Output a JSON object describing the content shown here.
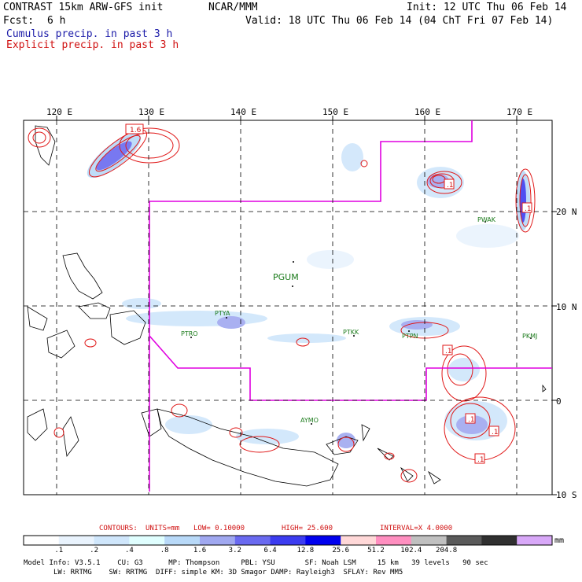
{
  "header": {
    "model": "CONTRAST 15km ARW-GFS init",
    "org": "NCAR/MMM",
    "init": "Init: 12 UTC Thu 06 Feb 14",
    "fcst_label": "Fcst:",
    "fcst_value": "6 h",
    "valid": "Valid: 18 UTC Thu 06 Feb 14 (04 ChT Fri 07 Feb 14)",
    "legend_cumulus": "Cumulus precip. in past 3 h",
    "legend_explicit": "Explicit precip. in past 3 h"
  },
  "colors": {
    "cumulus_text": "#1a1aa8",
    "explicit_text": "#d01010",
    "contour": "#e01818",
    "boundary": "#e000e0",
    "station": "#1a7a1a",
    "coast": "#000000"
  },
  "lon_labels": [
    "120 E",
    "130 E",
    "140 E",
    "150 E",
    "160 E",
    "170 E"
  ],
  "lat_labels": [
    "20 N",
    "10 N",
    "0",
    "10 S"
  ],
  "stations": [
    "PGUM",
    "PTYA",
    "PTRO",
    "PTKK",
    "PTPN",
    "PKMJ",
    "PWAK",
    "AYMO"
  ],
  "contour_values": [
    "1.6",
    ".1",
    ".1",
    ".1",
    ".1",
    ".1",
    ".1"
  ],
  "contour_info": {
    "contours": "CONTOURS:",
    "units": "UNITS=mm",
    "low": "LOW= 0.10000",
    "high": "HIGH= 25.600",
    "interval": "INTERVAL=X 4.0000"
  },
  "colorbar": {
    "unit": "mm",
    "ticks": [
      ".1",
      ".2",
      ".4",
      ".8",
      "1.6",
      "3.2",
      "6.4",
      "12.8",
      "25.6",
      "51.2",
      "102.4",
      "204.8"
    ],
    "colors": [
      "#ffffff",
      "#e9f3fd",
      "#cfe6fb",
      "#e0ffff",
      "#b8d9f8",
      "#a0a8f0",
      "#6a6af0",
      "#3c3cf0",
      "#0000ee",
      "#ffd8d8",
      "#ff8fc0",
      "#c0c0c0",
      "#5a5a5a",
      "#303030",
      "#d8a8f8"
    ]
  },
  "model_info": {
    "line1": "Model Info: V3.5.1    CU: G3      MP: Thompson     PBL: YSU       SF: Noah LSM     15 km   39 levels   90 sec",
    "line2": "LW: RRTMG    SW: RRTMG  DIFF: simple KM: 3D Smagor DAMP: Rayleigh3  SFLAY: Rev MM5"
  }
}
